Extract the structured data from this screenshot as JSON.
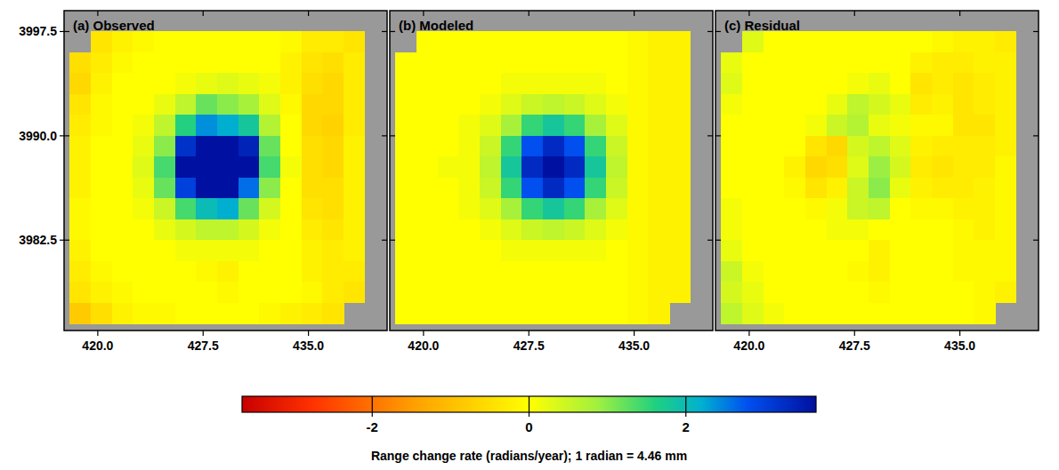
{
  "chart_data": {
    "type": "heatmap",
    "x": [
      418.75,
      420.25,
      421.75,
      423.25,
      424.75,
      426.25,
      427.75,
      429.25,
      430.75,
      432.25,
      433.75,
      435.25,
      436.75,
      438.25
    ],
    "y": [
      3996.75,
      3995.25,
      3993.75,
      3992.25,
      3990.75,
      3989.25,
      3987.75,
      3986.25,
      3984.75,
      3983.25,
      3981.75,
      3980.25,
      3978.75,
      3977.25
    ],
    "xlim": [
      417.6,
      440.6
    ],
    "ylim": [
      3976.0,
      3999.0
    ],
    "xticks": [
      {
        "value": 420,
        "label": "420.0"
      },
      427.5,
      {
        "value": 435,
        "label": "435.0"
      }
    ],
    "yticks": [
      3997.5,
      {
        "value": 3990,
        "label": "3990.0"
      },
      3982.5
    ],
    "color_range": [
      -3.66,
      3.66
    ],
    "color_ticks": [
      -2,
      0,
      2
    ],
    "color_label": "Range change rate (radians/year); 1 radian = 4.46 mm",
    "panels": [
      {
        "title": "(a) Observed",
        "cells": [
          [
            null,
            -0.4,
            -0.2,
            -0.1,
            0,
            0,
            0,
            0,
            0,
            0,
            -0.1,
            -0.3,
            -0.3,
            -0.4
          ],
          [
            -0.5,
            -0.3,
            -0.1,
            0,
            0,
            0,
            0,
            0,
            0,
            0,
            -0.2,
            -0.4,
            -0.5,
            -0.3
          ],
          [
            -0.6,
            -0.2,
            0,
            0,
            0,
            0.1,
            0.2,
            0.3,
            0.2,
            0.1,
            -0.2,
            -0.5,
            -0.6,
            -0.3
          ],
          [
            -0.4,
            -0.1,
            0,
            0,
            0.2,
            0.6,
            1.2,
            1.0,
            0.8,
            0.3,
            -0.1,
            -0.6,
            -0.6,
            -0.3
          ],
          [
            -0.3,
            -0.1,
            0,
            0.1,
            0.6,
            1.6,
            2.4,
            2.2,
            1.8,
            0.7,
            0,
            -0.6,
            -0.7,
            -0.3
          ],
          [
            -0.2,
            0,
            0,
            0.2,
            1.0,
            3.2,
            4.0,
            4.0,
            3.4,
            1.2,
            0,
            -0.5,
            -0.6,
            -0.2
          ],
          [
            -0.2,
            0,
            0,
            0.3,
            1.4,
            3.8,
            4.2,
            4.2,
            3.8,
            1.4,
            0.1,
            -0.5,
            -0.6,
            -0.2
          ],
          [
            -0.2,
            0,
            0,
            0.2,
            1.2,
            3.0,
            4.0,
            3.9,
            2.6,
            1.0,
            0,
            -0.5,
            -0.5,
            -0.2
          ],
          [
            -0.1,
            0,
            0,
            0.1,
            0.5,
            1.4,
            2.0,
            2.2,
            1.2,
            0.4,
            0,
            -0.4,
            -0.5,
            -0.2
          ],
          [
            -0.1,
            0,
            0,
            0,
            0.2,
            0.4,
            0.6,
            0.6,
            0.4,
            0.1,
            0,
            -0.3,
            -0.4,
            -0.2
          ],
          [
            -0.2,
            0,
            0,
            0,
            0,
            0.1,
            0.1,
            0.1,
            0.1,
            0,
            0,
            -0.2,
            -0.3,
            -0.2
          ],
          [
            -0.3,
            -0.1,
            0,
            0,
            0,
            0,
            -0.1,
            -0.2,
            0,
            0,
            0,
            -0.2,
            -0.3,
            -0.3
          ],
          [
            -0.4,
            -0.2,
            -0.1,
            0,
            0,
            0,
            0,
            -0.1,
            0,
            0,
            0,
            -0.1,
            -0.3,
            -0.4
          ],
          [
            -0.8,
            -0.5,
            -0.2,
            -0.1,
            -0.1,
            0,
            0,
            0,
            0,
            -0.1,
            -0.2,
            -0.3,
            -0.4,
            null
          ]
        ]
      },
      {
        "title": "(b) Modeled",
        "cells": [
          [
            null,
            0,
            0,
            0,
            0,
            0,
            0,
            0,
            0,
            0,
            0,
            -0.1,
            -0.2,
            -0.2
          ],
          [
            0,
            0,
            0,
            0,
            0,
            0,
            0,
            0,
            0,
            0,
            0,
            -0.1,
            -0.2,
            -0.2
          ],
          [
            0,
            0,
            0,
            0,
            0,
            0.1,
            0.1,
            0.1,
            0.1,
            0.1,
            0,
            -0.1,
            -0.2,
            -0.2
          ],
          [
            0,
            0,
            0,
            0,
            0.1,
            0.3,
            0.5,
            0.6,
            0.5,
            0.3,
            0.1,
            -0.1,
            -0.2,
            -0.2
          ],
          [
            0,
            0,
            0,
            0.1,
            0.3,
            0.8,
            1.5,
            1.8,
            1.5,
            0.8,
            0.3,
            -0.1,
            -0.2,
            -0.2
          ],
          [
            0,
            0,
            0,
            0.1,
            0.5,
            1.5,
            2.8,
            3.3,
            2.8,
            1.5,
            0.5,
            -0.1,
            -0.2,
            -0.2
          ],
          [
            0,
            0,
            0.1,
            0.1,
            0.6,
            1.8,
            3.3,
            4.2,
            3.3,
            1.8,
            0.6,
            -0.1,
            -0.2,
            -0.2
          ],
          [
            0,
            0,
            0,
            0.1,
            0.5,
            1.5,
            2.8,
            3.3,
            2.8,
            1.5,
            0.5,
            -0.1,
            -0.2,
            -0.2
          ],
          [
            0,
            0,
            0,
            0.1,
            0.3,
            0.8,
            1.5,
            1.8,
            1.5,
            0.8,
            0.3,
            -0.1,
            -0.2,
            -0.2
          ],
          [
            0,
            0,
            0,
            0,
            0.1,
            0.3,
            0.5,
            0.6,
            0.5,
            0.3,
            0.1,
            -0.1,
            -0.2,
            -0.2
          ],
          [
            0,
            0,
            0,
            0,
            0,
            0.1,
            0.1,
            0.1,
            0.1,
            0.1,
            0,
            -0.1,
            -0.2,
            -0.2
          ],
          [
            0,
            0,
            0,
            0,
            0,
            0,
            0,
            0,
            0,
            0,
            0,
            -0.1,
            -0.2,
            -0.2
          ],
          [
            0,
            0,
            0,
            0,
            0,
            0,
            0,
            0,
            0,
            0,
            0,
            -0.1,
            -0.2,
            -0.2
          ],
          [
            0,
            0,
            0,
            0,
            0,
            0,
            0,
            0,
            0,
            0,
            0,
            -0.1,
            -0.2,
            null
          ]
        ]
      },
      {
        "title": "(c) Residual",
        "cells": [
          [
            null,
            0.3,
            0,
            0,
            0,
            0,
            0,
            0,
            0,
            0,
            -0.1,
            -0.2,
            -0.2,
            -0.3
          ],
          [
            0.2,
            0,
            0,
            0,
            0,
            0,
            0,
            0,
            0,
            -0.2,
            -0.3,
            -0.3,
            -0.2,
            -0.2
          ],
          [
            0.3,
            0,
            0,
            0,
            0,
            0,
            0.1,
            0.2,
            0,
            -0.4,
            -0.3,
            -0.4,
            -0.3,
            -0.2
          ],
          [
            0.1,
            0,
            0,
            0,
            0,
            0.2,
            0.6,
            0.4,
            0.2,
            -0.3,
            -0.2,
            -0.4,
            -0.3,
            -0.2
          ],
          [
            0,
            0,
            0,
            0,
            0.1,
            0.5,
            0.7,
            0.2,
            0.1,
            -0.1,
            -0.1,
            -0.4,
            -0.4,
            -0.2
          ],
          [
            0,
            0,
            0,
            0,
            -0.4,
            -0.6,
            0.4,
            0.6,
            0.3,
            -0.2,
            -0.3,
            -0.3,
            -0.3,
            -0.2
          ],
          [
            0,
            0,
            0,
            -0.2,
            -0.6,
            -0.5,
            0.3,
            0.9,
            0.4,
            -0.3,
            -0.4,
            -0.3,
            -0.3,
            -0.1
          ],
          [
            0,
            0,
            0,
            -0.1,
            -0.4,
            -0.2,
            0.5,
            1.0,
            0.2,
            -0.2,
            -0.3,
            -0.3,
            -0.2,
            -0.1
          ],
          [
            0.1,
            0,
            0,
            0,
            -0.1,
            0.1,
            0.5,
            0.6,
            0,
            -0.1,
            -0.1,
            -0.2,
            -0.2,
            -0.1
          ],
          [
            0.1,
            0,
            0,
            0,
            0,
            0.1,
            0.1,
            0,
            0,
            0,
            0,
            -0.1,
            -0.2,
            -0.1
          ],
          [
            0.2,
            0,
            0,
            0,
            0,
            0,
            0,
            -0.2,
            0,
            0,
            0,
            -0.1,
            -0.1,
            -0.1
          ],
          [
            0.5,
            0.1,
            0,
            0,
            0,
            0,
            -0.1,
            -0.2,
            0,
            0,
            0,
            -0.1,
            -0.1,
            -0.1
          ],
          [
            0.4,
            0.2,
            0,
            0,
            0,
            0,
            0,
            -0.1,
            0,
            0,
            0,
            0,
            -0.1,
            -0.2
          ],
          [
            0.6,
            0.3,
            0.1,
            0,
            0,
            0,
            0,
            0,
            0,
            0,
            0,
            0,
            -0.1,
            null
          ]
        ]
      }
    ]
  }
}
